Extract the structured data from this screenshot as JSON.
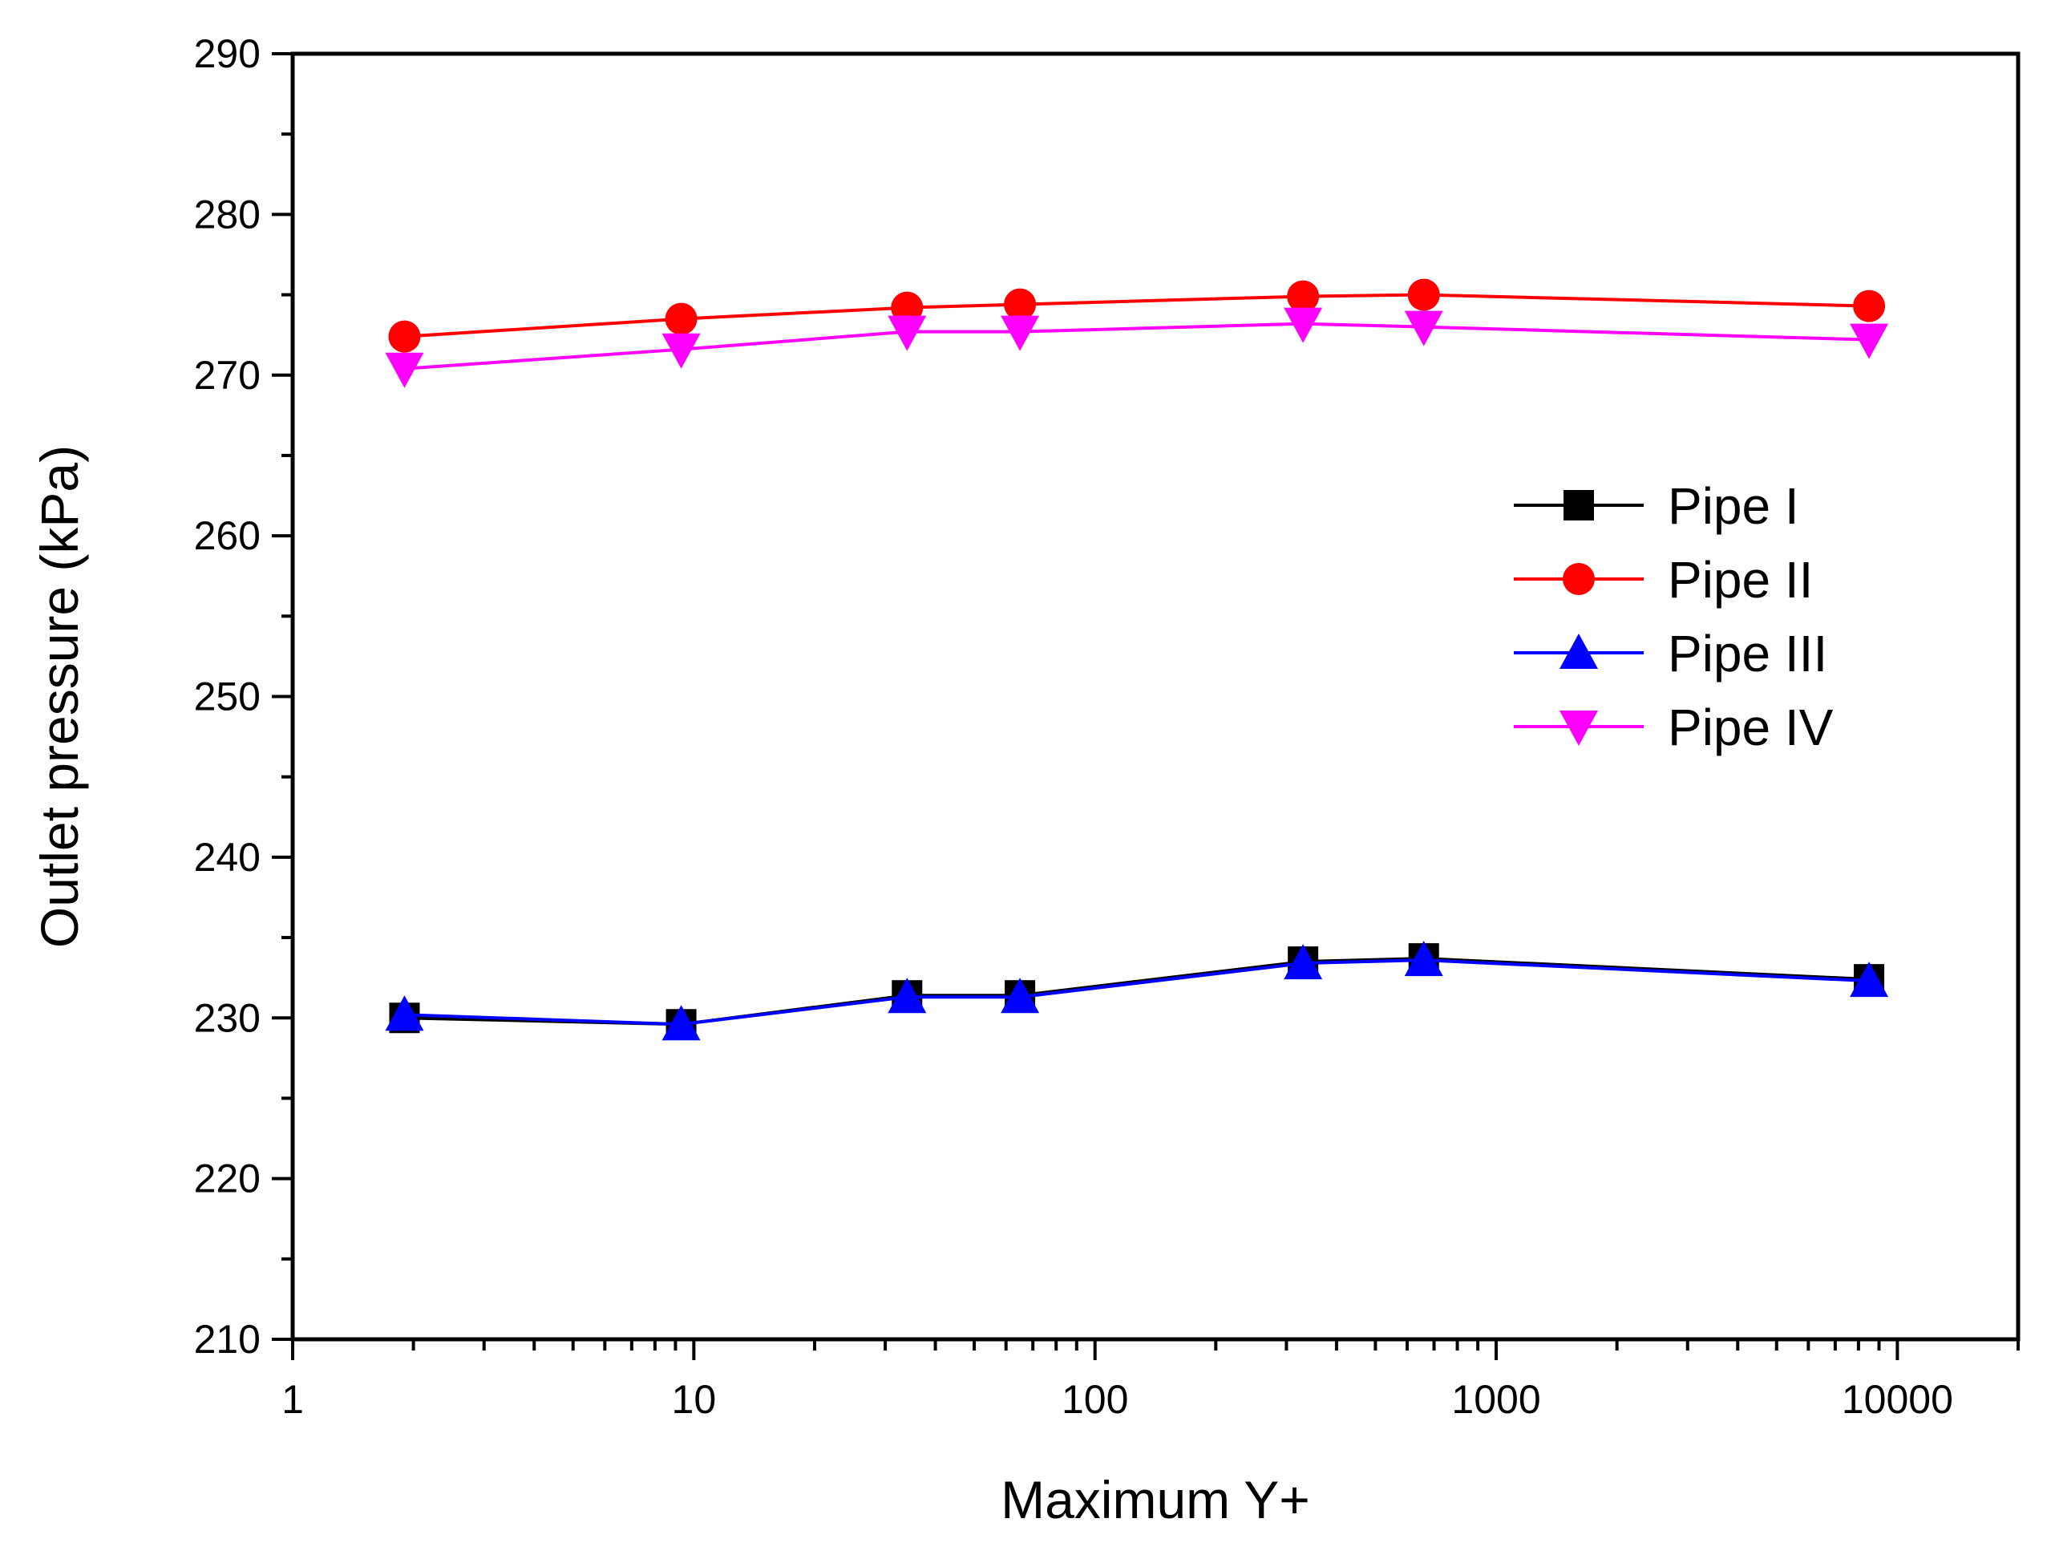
{
  "chart_data": {
    "type": "line",
    "title": "",
    "xlabel": "Maximum Y+",
    "ylabel": "Outlet pressure (kPa)",
    "xscale": "log",
    "xlim": [
      1,
      20000
    ],
    "ylim": [
      210,
      290
    ],
    "grid": false,
    "legend_position": "right",
    "x_tick_labels": [
      "1",
      "10",
      "100",
      "1000",
      "10000"
    ],
    "y_tick_labels": [
      "210",
      "220",
      "230",
      "240",
      "250",
      "260",
      "270",
      "280",
      "290"
    ],
    "x": [
      1.9,
      9.3,
      34,
      65,
      330,
      660,
      8500
    ],
    "series": [
      {
        "name": "Pipe I",
        "color": "#000000",
        "marker": "square",
        "values": [
          230.0,
          229.6,
          231.4,
          231.4,
          233.5,
          233.7,
          232.4
        ]
      },
      {
        "name": "Pipe II",
        "color": "#ff0000",
        "marker": "circle",
        "values": [
          272.4,
          273.5,
          274.2,
          274.4,
          274.9,
          275.0,
          274.3
        ]
      },
      {
        "name": "Pipe III",
        "color": "#0000ff",
        "marker": "triangle-up",
        "values": [
          230.2,
          229.6,
          231.3,
          231.3,
          233.4,
          233.6,
          232.3
        ]
      },
      {
        "name": "Pipe IV",
        "color": "#ff00ff",
        "marker": "triangle-down",
        "values": [
          270.4,
          271.6,
          272.7,
          272.7,
          273.2,
          273.0,
          272.2
        ]
      }
    ]
  }
}
